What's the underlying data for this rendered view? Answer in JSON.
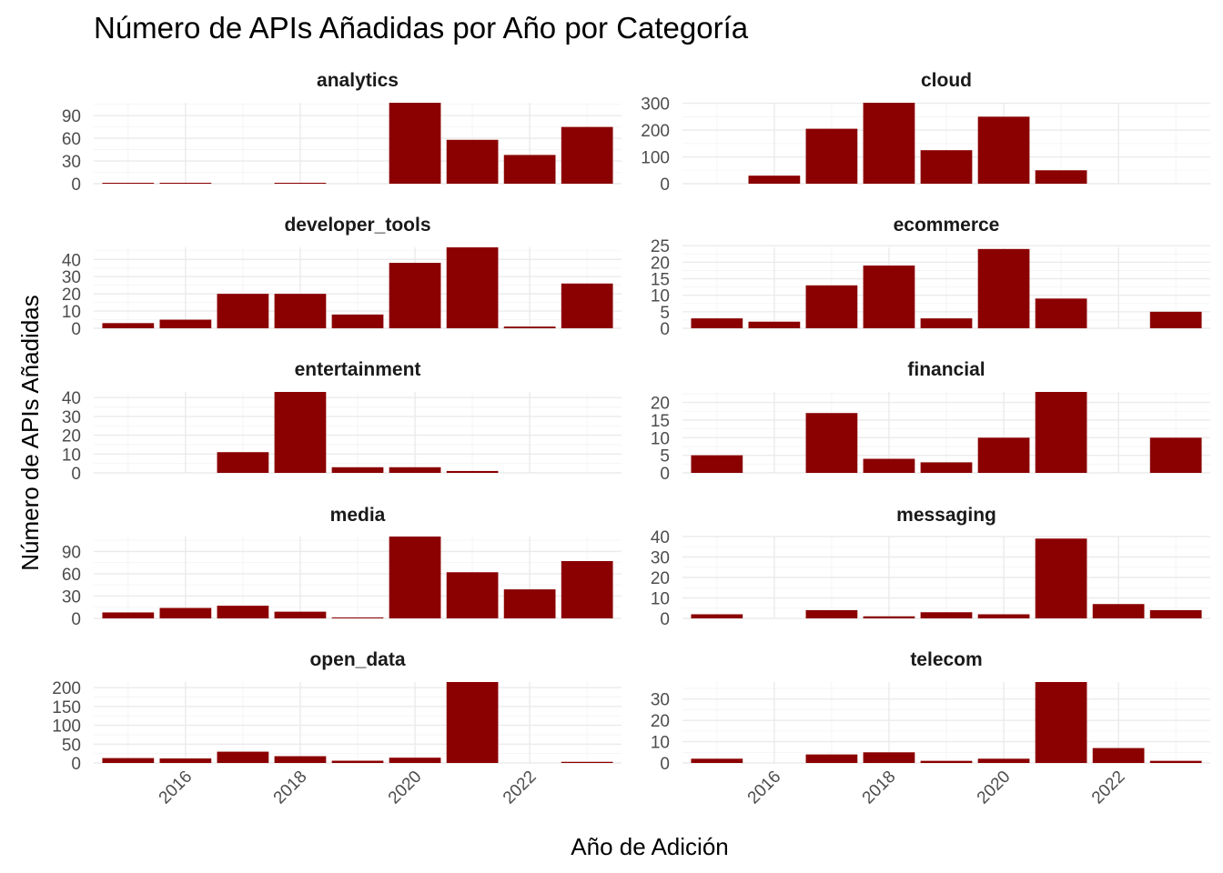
{
  "chart_data": {
    "type": "bar",
    "title": "Número de APIs Añadidas por Año por Categoría",
    "xlabel": "Año de Adición",
    "ylabel": "Número de APIs Añadidas",
    "x_ticks": [
      "2016",
      "2018",
      "2020",
      "2022"
    ],
    "xlim": [
      2014.4,
      2023.6
    ],
    "bar_color": "#8b0000",
    "layout": "facet-wrap 5 rows x 2 columns",
    "grid": true,
    "panels": [
      {
        "name": "analytics",
        "years": [
          2015,
          2016,
          2018,
          2020,
          2021,
          2022,
          2023
        ],
        "values": [
          1,
          1,
          1,
          107,
          58,
          38,
          75
        ],
        "ylim": [
          0,
          107
        ],
        "yticks": [
          0,
          30,
          60,
          90
        ]
      },
      {
        "name": "cloud",
        "years": [
          2016,
          2017,
          2018,
          2019,
          2020,
          2021
        ],
        "values": [
          30,
          205,
          302,
          125,
          250,
          50
        ],
        "ylim": [
          0,
          302
        ],
        "yticks": [
          0,
          100,
          200,
          300
        ]
      },
      {
        "name": "developer_tools",
        "years": [
          2015,
          2016,
          2017,
          2018,
          2019,
          2020,
          2021,
          2022,
          2023
        ],
        "values": [
          3,
          5,
          20,
          20,
          8,
          38,
          47,
          1,
          26
        ],
        "ylim": [
          0,
          47
        ],
        "yticks": [
          0,
          10,
          20,
          30,
          40
        ]
      },
      {
        "name": "ecommerce",
        "years": [
          2015,
          2016,
          2017,
          2018,
          2019,
          2020,
          2021,
          2023
        ],
        "values": [
          3,
          2,
          13,
          19,
          3,
          24,
          9,
          5
        ],
        "ylim": [
          0,
          24.5
        ],
        "yticks": [
          0,
          5,
          10,
          15,
          20,
          25
        ]
      },
      {
        "name": "entertainment",
        "years": [
          2017,
          2018,
          2019,
          2020,
          2021
        ],
        "values": [
          11,
          43,
          3,
          3,
          1
        ],
        "ylim": [
          0,
          43
        ],
        "yticks": [
          0,
          10,
          20,
          30,
          40
        ]
      },
      {
        "name": "financial",
        "years": [
          2015,
          2017,
          2018,
          2019,
          2020,
          2021,
          2023
        ],
        "values": [
          5,
          17,
          4,
          3,
          10,
          23,
          10
        ],
        "ylim": [
          0,
          23
        ],
        "yticks": [
          0,
          5,
          10,
          15,
          20
        ]
      },
      {
        "name": "media",
        "years": [
          2015,
          2016,
          2017,
          2018,
          2019,
          2020,
          2021,
          2022,
          2023
        ],
        "values": [
          8,
          14,
          17,
          9,
          1,
          110,
          62,
          39,
          77
        ],
        "ylim": [
          0,
          110
        ],
        "yticks": [
          0,
          30,
          60,
          90
        ]
      },
      {
        "name": "messaging",
        "years": [
          2015,
          2017,
          2018,
          2019,
          2020,
          2021,
          2022,
          2023
        ],
        "values": [
          2,
          4,
          1,
          3,
          2,
          39,
          7,
          4
        ],
        "ylim": [
          0,
          40
        ],
        "yticks": [
          0,
          10,
          20,
          30,
          40
        ]
      },
      {
        "name": "open_data",
        "years": [
          2015,
          2016,
          2017,
          2018,
          2019,
          2020,
          2021,
          2023
        ],
        "values": [
          13,
          12,
          30,
          18,
          6,
          14,
          215,
          3
        ],
        "ylim": [
          0,
          215
        ],
        "yticks": [
          0,
          50,
          100,
          150,
          200
        ]
      },
      {
        "name": "telecom",
        "years": [
          2015,
          2017,
          2018,
          2019,
          2020,
          2021,
          2022,
          2023
        ],
        "values": [
          2,
          4,
          5,
          1,
          2,
          38,
          7,
          1
        ],
        "ylim": [
          0,
          38
        ],
        "yticks": [
          0,
          10,
          20,
          30
        ]
      }
    ]
  }
}
